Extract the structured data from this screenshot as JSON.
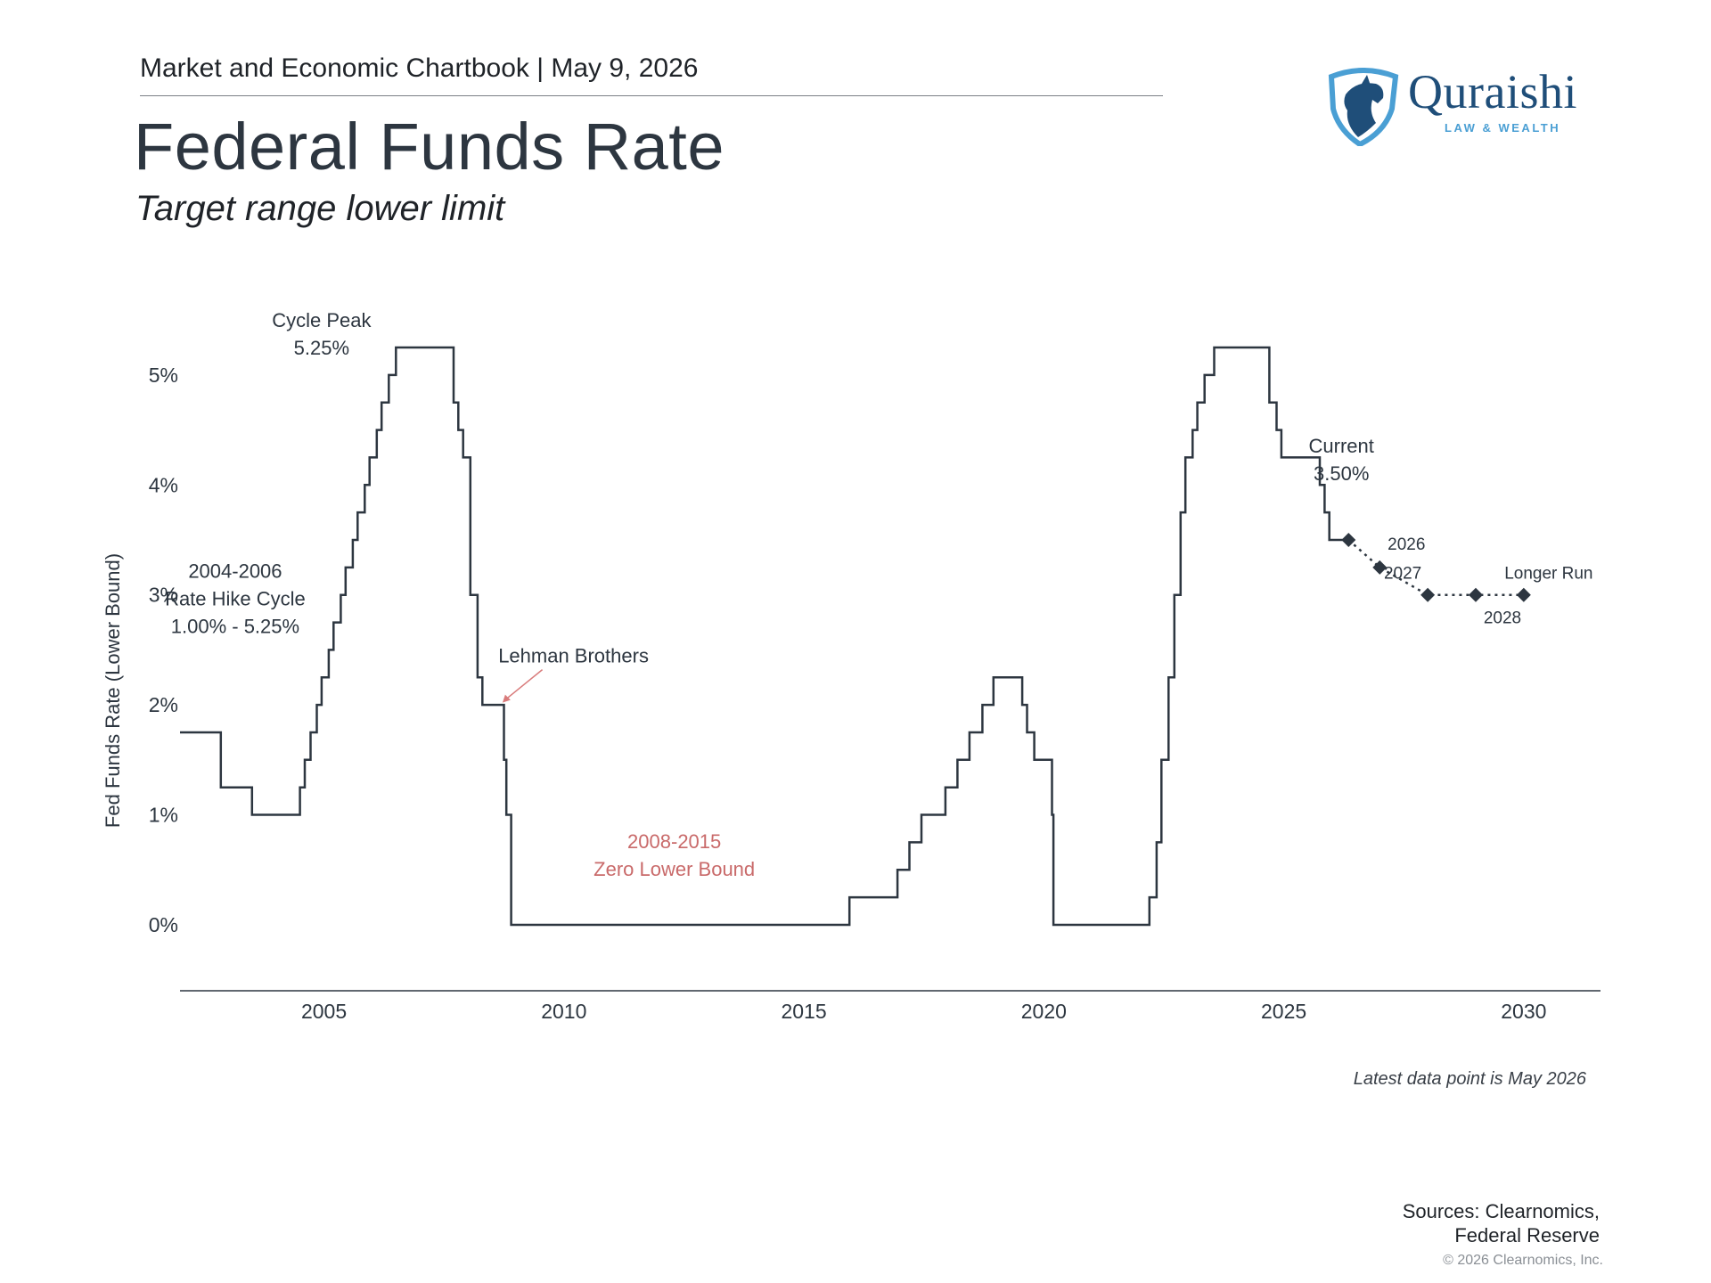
{
  "header": {
    "series_name": "Market and Economic Chartbook",
    "separator": "|",
    "date": "May 9, 2026",
    "title": "Federal Funds Rate",
    "subtitle": "Target range lower limit"
  },
  "logo": {
    "name": "Quraishi",
    "tagline": "LAW & WEALTH",
    "icon": "horse-head-shield-icon",
    "colors": {
      "dark": "#1f4e79",
      "light": "#4a9fd4"
    }
  },
  "colors": {
    "line": "#2d3640",
    "projection": "#2d3640",
    "zero_bound_text": "#c96a6a",
    "lehman_arrow": "#d97b7b",
    "axis": "#2d3640",
    "text": "#2d3640"
  },
  "chart_data": {
    "type": "line",
    "step": true,
    "ylabel": "Fed Funds Rate (Lower Bound)",
    "xlabel": "",
    "xlim": [
      2002,
      2031.6
    ],
    "ylim": [
      -0.6,
      5.55
    ],
    "y_ticks": [
      0,
      1,
      2,
      3,
      4,
      5
    ],
    "y_tick_labels": [
      "0%",
      "1%",
      "2%",
      "3%",
      "4%",
      "5%"
    ],
    "x_ticks": [
      2005,
      2010,
      2015,
      2020,
      2025,
      2030
    ],
    "x_tick_labels": [
      "2005",
      "2010",
      "2015",
      "2020",
      "2025",
      "2030"
    ],
    "grid": false,
    "series": [
      {
        "style": "step",
        "x": [
          2002.0,
          2002.85,
          2003.5,
          2004.5,
          2004.6,
          2004.72,
          2004.85,
          2004.95,
          2005.1,
          2005.2,
          2005.35,
          2005.45,
          2005.6,
          2005.7,
          2005.85,
          2005.95,
          2006.1,
          2006.2,
          2006.35,
          2006.5,
          2007.7,
          2007.8,
          2007.9,
          2008.05,
          2008.2,
          2008.3,
          2008.75,
          2008.8,
          2008.9,
          2009.0,
          2015.95,
          2016.95,
          2017.2,
          2017.45,
          2017.95,
          2018.2,
          2018.45,
          2018.72,
          2018.95,
          2019.55,
          2019.65,
          2019.8,
          2020.17,
          2020.2,
          2022.2,
          2022.35,
          2022.45,
          2022.6,
          2022.72,
          2022.85,
          2022.95,
          2023.1,
          2023.2,
          2023.35,
          2023.55,
          2024.7,
          2024.85,
          2024.95,
          2025.75,
          2025.85,
          2025.95,
          2026.35
        ],
        "y": [
          1.75,
          1.25,
          1.0,
          1.25,
          1.5,
          1.75,
          2.0,
          2.25,
          2.5,
          2.75,
          3.0,
          3.25,
          3.5,
          3.75,
          4.0,
          4.25,
          4.5,
          4.75,
          5.0,
          5.25,
          4.75,
          4.5,
          4.25,
          3.0,
          2.25,
          2.0,
          1.5,
          1.0,
          0.0,
          0.0,
          0.25,
          0.5,
          0.75,
          1.0,
          1.25,
          1.5,
          1.75,
          2.0,
          2.25,
          2.0,
          1.75,
          1.5,
          1.0,
          0.0,
          0.25,
          0.75,
          1.5,
          2.25,
          3.0,
          3.75,
          4.25,
          4.5,
          4.75,
          5.0,
          5.25,
          4.75,
          4.5,
          4.25,
          4.0,
          3.75,
          3.5,
          3.5
        ]
      },
      {
        "style": "dotted-projection",
        "x": [
          2026.35,
          2027.0,
          2028.0,
          2029.0,
          2030.0
        ],
        "y": [
          3.5,
          3.25,
          3.0,
          3.0,
          3.0
        ],
        "point_labels": [
          "",
          "2026",
          "2027",
          "2028",
          "Longer Run"
        ]
      }
    ],
    "annotations": [
      {
        "id": "cycle-peak",
        "lines": [
          "Cycle Peak",
          "5.25%"
        ]
      },
      {
        "id": "hike-cycle",
        "lines": [
          "2004-2006",
          "Rate Hike Cycle",
          "1.00% - 5.25%"
        ]
      },
      {
        "id": "lehman",
        "lines": [
          "Lehman Brothers"
        ]
      },
      {
        "id": "zero-bound",
        "lines": [
          "2008-2015",
          "Zero Lower Bound"
        ]
      },
      {
        "id": "current",
        "lines": [
          "Current",
          "3.50%"
        ]
      }
    ]
  },
  "footer": {
    "latest": "Latest data point is May 2026",
    "sources_line1": "Sources: Clearnomics,",
    "sources_line2": "Federal Reserve",
    "copyright": "© 2026 Clearnomics, Inc."
  }
}
